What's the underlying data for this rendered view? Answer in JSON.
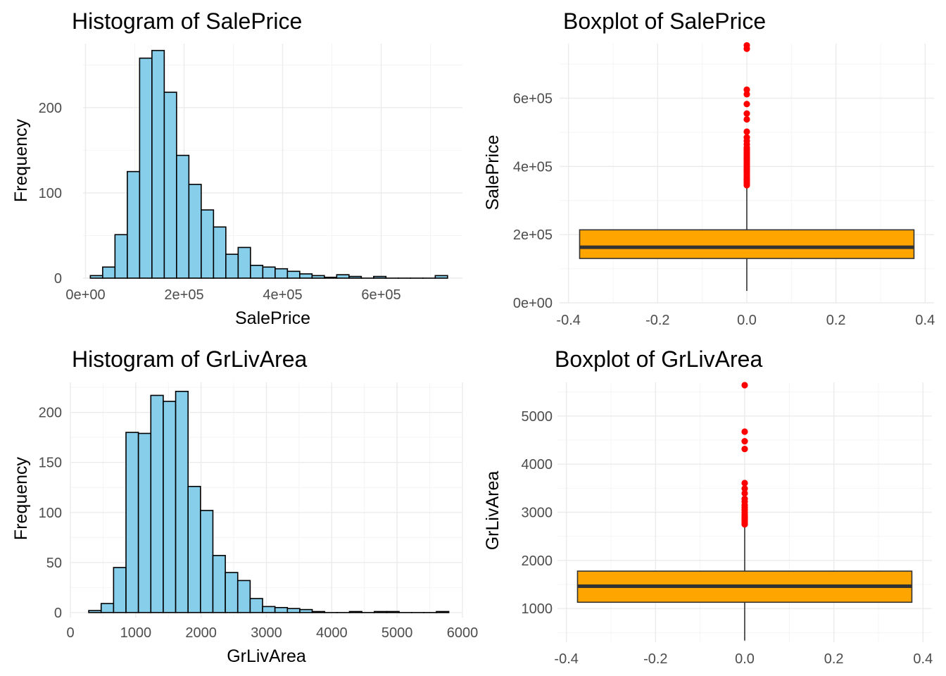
{
  "colors": {
    "histogram_fill": "#87ceeb",
    "box_fill": "#ffa500",
    "outlier": "#ff0000",
    "outline": "#000000",
    "median": "#333333"
  },
  "chart_data": [
    {
      "id": "hist_saleprice",
      "type": "bar",
      "title": "Histogram of SalePrice",
      "xlabel": "SalePrice",
      "ylabel": "Frequency",
      "xlim": [
        -5000,
        765000
      ],
      "ylim": [
        0,
        275
      ],
      "x_ticks": [
        0,
        200000,
        400000,
        600000
      ],
      "x_tick_labels": [
        "0e+00",
        "2e+05",
        "4e+05",
        "6e+05"
      ],
      "y_ticks": [
        0,
        100,
        200
      ],
      "y_tick_labels": [
        "0",
        "100",
        "200"
      ],
      "bin_start": 9785,
      "bin_width": 25000,
      "values": [
        3,
        13,
        51,
        125,
        258,
        267,
        218,
        144,
        110,
        80,
        60,
        28,
        36,
        15,
        13,
        11,
        8,
        5,
        3,
        1,
        4,
        2,
        0,
        2,
        0,
        0,
        0,
        0,
        3
      ],
      "grid": true
    },
    {
      "id": "box_saleprice",
      "type": "boxplot",
      "title": "Boxplot of SalePrice",
      "xlabel": "",
      "ylabel": "SalePrice",
      "xlim": [
        -0.42,
        0.42
      ],
      "ylim": [
        0,
        760000
      ],
      "x_ticks": [
        -0.4,
        -0.2,
        0.0,
        0.2,
        0.4
      ],
      "x_tick_labels": [
        "-0.4",
        "-0.2",
        "0.0",
        "0.2",
        "0.4"
      ],
      "y_ticks": [
        0,
        200000,
        400000,
        600000
      ],
      "y_tick_labels": [
        "0e+00",
        "2e+05",
        "4e+05",
        "6e+05"
      ],
      "box": {
        "xmin": -0.375,
        "xmax": 0.375,
        "whisker_low": 34900,
        "q1": 130000,
        "median": 163000,
        "q3": 214000,
        "whisker_high": 340000
      },
      "outliers": [
        345000,
        350000,
        355000,
        360000,
        365000,
        370000,
        375000,
        380000,
        385000,
        390000,
        395000,
        400000,
        405000,
        410000,
        415000,
        420000,
        425000,
        430000,
        435000,
        440000,
        445000,
        450000,
        455000,
        465000,
        475000,
        485000,
        501837,
        538000,
        555000,
        582933,
        611657,
        625000,
        745000,
        755000
      ],
      "grid": true
    },
    {
      "id": "hist_grlivarea",
      "type": "bar",
      "title": "Histogram of GrLivArea",
      "xlabel": "GrLivArea",
      "ylabel": "Frequency",
      "xlim": [
        0,
        6000
      ],
      "ylim": [
        -5,
        230
      ],
      "x_ticks": [
        0,
        1000,
        2000,
        3000,
        4000,
        5000,
        6000
      ],
      "x_tick_labels": [
        "0",
        "1000",
        "2000",
        "3000",
        "4000",
        "5000",
        "6000"
      ],
      "y_ticks": [
        0,
        50,
        100,
        150,
        200
      ],
      "y_tick_labels": [
        "0",
        "50",
        "100",
        "150",
        "200"
      ],
      "bin_start": 281,
      "bin_width": 190,
      "values": [
        2,
        9,
        45,
        180,
        179,
        217,
        211,
        221,
        126,
        102,
        57,
        40,
        32,
        14,
        6,
        5,
        4,
        3,
        1,
        0,
        0,
        1,
        0,
        1,
        1,
        0,
        0,
        0,
        1
      ],
      "grid": true
    },
    {
      "id": "box_grlivarea",
      "type": "boxplot",
      "title": "Boxplot of GrLivArea",
      "xlabel": "",
      "ylabel": "GrLivArea",
      "xlim": [
        -0.42,
        0.42
      ],
      "ylim": [
        300,
        5700
      ],
      "x_ticks": [
        -0.4,
        -0.2,
        0.0,
        0.2,
        0.4
      ],
      "x_tick_labels": [
        "-0.4",
        "-0.2",
        "0.0",
        "0.2",
        "0.4"
      ],
      "y_ticks": [
        1000,
        2000,
        3000,
        4000,
        5000
      ],
      "y_tick_labels": [
        "1000",
        "2000",
        "3000",
        "4000",
        "5000"
      ],
      "box": {
        "xmin": -0.375,
        "xmax": 0.375,
        "whisker_low": 334,
        "q1": 1130,
        "median": 1464,
        "q3": 1777,
        "whisker_high": 2730
      },
      "outliers": [
        2750,
        2790,
        2820,
        2850,
        2880,
        2910,
        2950,
        3000,
        3050,
        3100,
        3150,
        3222,
        3279,
        3395,
        3493,
        3608,
        4316,
        4476,
        4676,
        5642
      ],
      "grid": true
    }
  ]
}
